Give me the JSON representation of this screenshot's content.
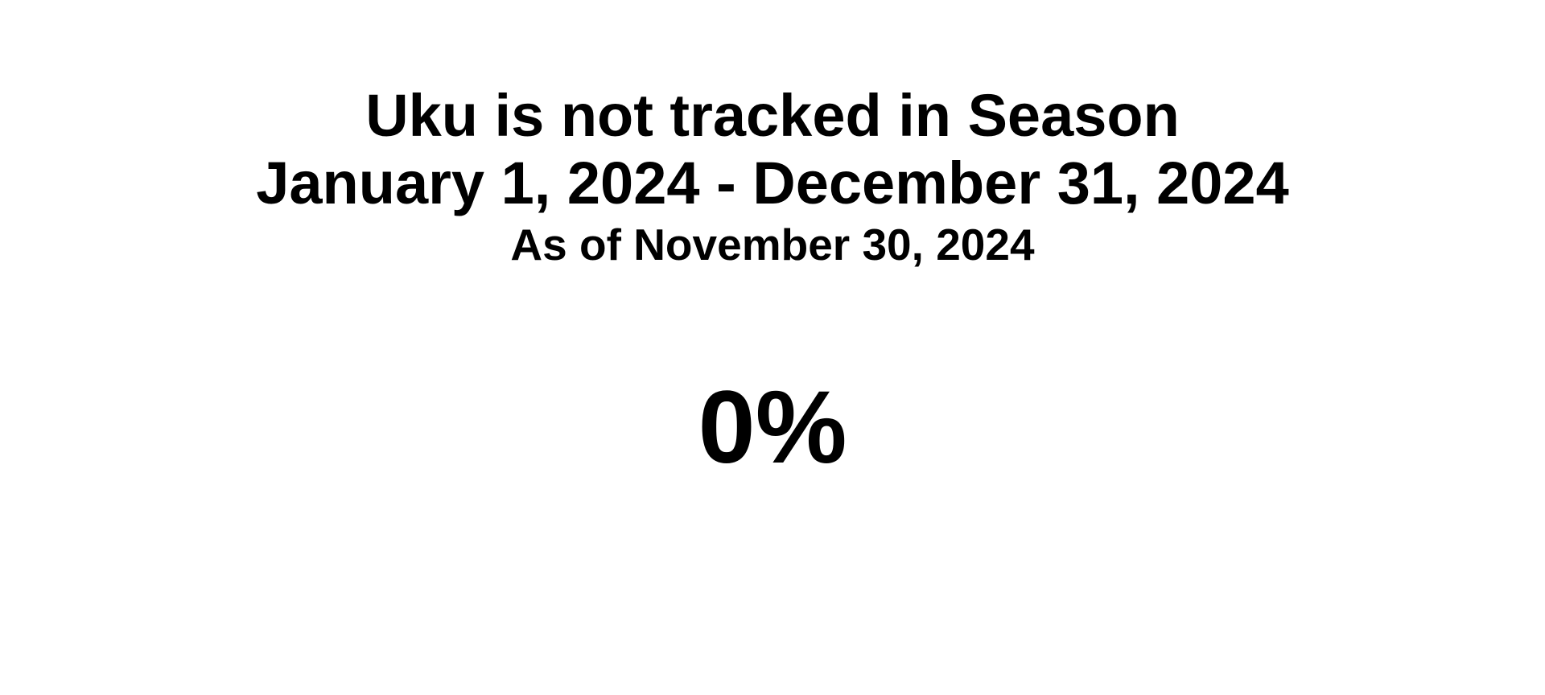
{
  "report": {
    "title": "Uku is not tracked in Season",
    "season_range": "January 1, 2024 - December 31, 2024",
    "as_of": "As of November 30, 2024",
    "percent": "0%"
  }
}
